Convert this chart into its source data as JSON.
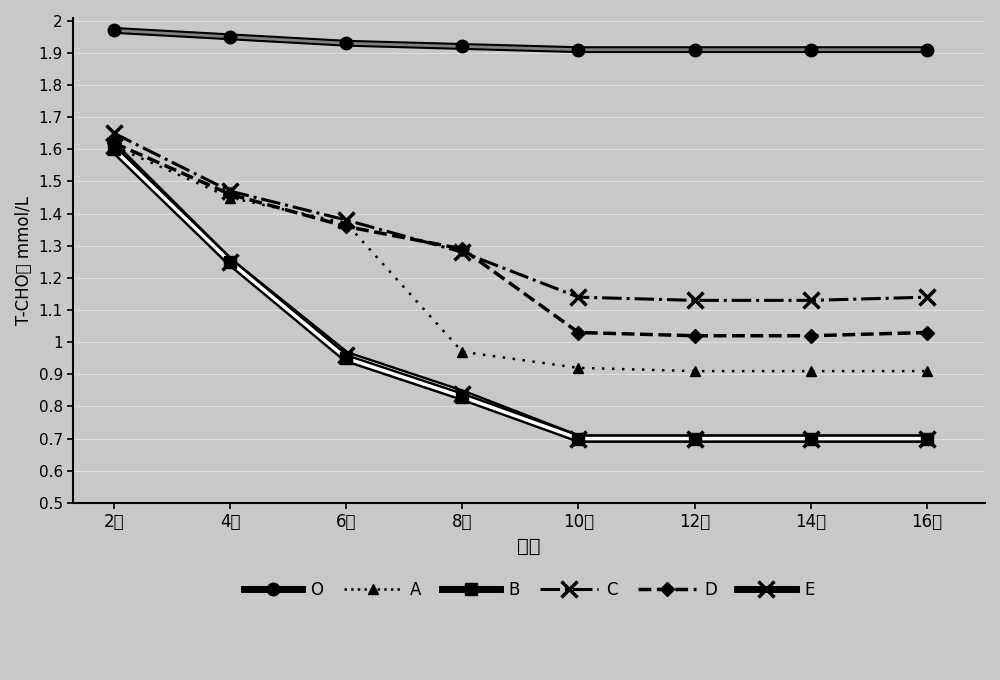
{
  "x": [
    2,
    4,
    6,
    8,
    10,
    12,
    14,
    16
  ],
  "x_labels": [
    "2周",
    "4周",
    "6周",
    "8周",
    "10周",
    "12周",
    "14周",
    "16周"
  ],
  "series": {
    "O": [
      1.97,
      1.95,
      1.93,
      1.92,
      1.91,
      1.91,
      1.91,
      1.91
    ],
    "A": [
      1.61,
      1.45,
      1.37,
      0.97,
      0.92,
      0.91,
      0.91,
      0.91
    ],
    "B": [
      1.6,
      1.25,
      0.95,
      0.83,
      0.7,
      0.7,
      0.7,
      0.7
    ],
    "C": [
      1.65,
      1.47,
      1.38,
      1.28,
      1.14,
      1.13,
      1.13,
      1.14
    ],
    "D": [
      1.62,
      1.46,
      1.36,
      1.29,
      1.03,
      1.02,
      1.02,
      1.03
    ],
    "E": [
      1.61,
      1.25,
      0.96,
      0.84,
      0.7,
      0.7,
      0.7,
      0.7
    ]
  },
  "ylabel": "T-CHO値 mmol/L",
  "xlabel": "时间",
  "ylim": [
    0.5,
    2.0
  ],
  "yticks": [
    0.5,
    0.6,
    0.7,
    0.8,
    0.9,
    1.0,
    1.1,
    1.2,
    1.3,
    1.4,
    1.5,
    1.6,
    1.7,
    1.8,
    1.9,
    2.0
  ],
  "ytick_labels": [
    "0.5",
    "0.6",
    "0.7",
    "0.8",
    "0.9",
    "1",
    "1.1",
    "1.2",
    "1.3",
    "1.4",
    "1.5",
    "1.6",
    "1.7",
    "1.8",
    "1.9",
    "2"
  ],
  "background_color": "#c8c8c8",
  "plot_bg_color": "#c8c8c8"
}
